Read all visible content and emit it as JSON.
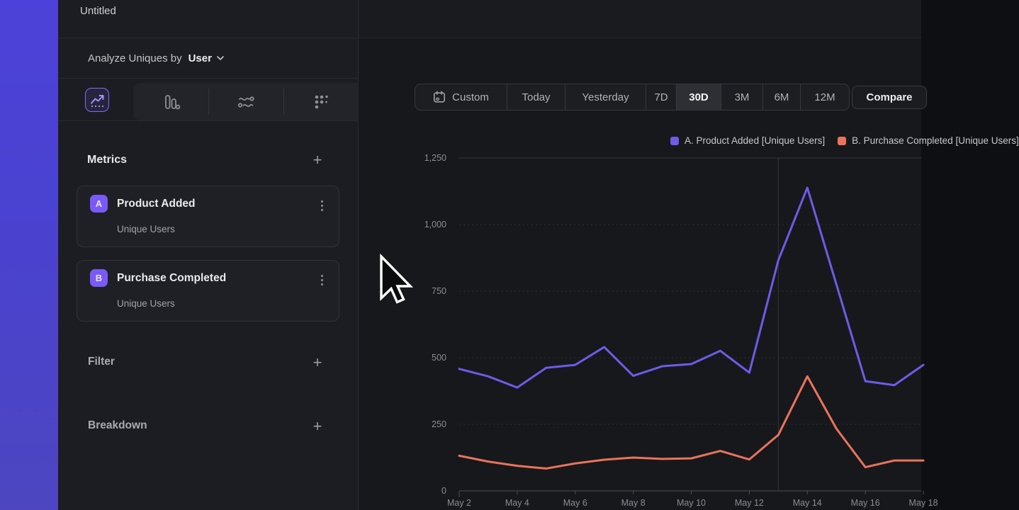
{
  "window": {
    "title": "Untitled"
  },
  "sidebar": {
    "analyze": {
      "prefix": "Analyze Uniques by",
      "value": "User"
    },
    "chart_type_tabs": [
      {
        "icon": "line-chart-icon",
        "active": true
      },
      {
        "icon": "bar-chart-icon",
        "active": false
      },
      {
        "icon": "flow-chart-icon",
        "active": false
      },
      {
        "icon": "scatter-chart-icon",
        "active": false
      }
    ],
    "metrics": {
      "title": "Metrics",
      "add_label": "+",
      "items": [
        {
          "badge": "A",
          "name": "Product Added",
          "measure": "Unique Users"
        },
        {
          "badge": "B",
          "name": "Purchase Completed",
          "measure": "Unique Users"
        }
      ]
    },
    "filter": {
      "label": "Filter",
      "add_label": "+"
    },
    "breakdown": {
      "label": "Breakdown",
      "add_label": "+"
    }
  },
  "toolbar": {
    "ranges": [
      {
        "label": "Custom",
        "icon": "calendar-icon",
        "active": false
      },
      {
        "label": "Today",
        "active": false
      },
      {
        "label": "Yesterday",
        "active": false
      },
      {
        "label": "7D",
        "active": false
      },
      {
        "label": "30D",
        "active": true
      },
      {
        "label": "3M",
        "active": false
      },
      {
        "label": "6M",
        "active": false
      },
      {
        "label": "12M",
        "active": false
      }
    ],
    "compare_label": "Compare"
  },
  "chart_data": {
    "type": "line",
    "x_unit": "date (May)",
    "x": [
      2,
      3,
      4,
      5,
      6,
      7,
      8,
      9,
      10,
      11,
      12,
      13,
      14,
      15,
      16,
      17,
      18
    ],
    "x_tick_days": [
      2,
      4,
      6,
      8,
      10,
      12,
      14,
      16,
      18
    ],
    "x_tick_labels": [
      "May 2",
      "May 4",
      "May 6",
      "May 8",
      "May 10",
      "May 12",
      "May 14",
      "May 16",
      "May 18"
    ],
    "series": [
      {
        "name": "A. Product Added [Unique Users]",
        "color": "#6e5be8",
        "values": [
          458,
          430,
          388,
          462,
          473,
          540,
          432,
          468,
          476,
          526,
          444,
          866,
          1138,
          776,
          412,
          397,
          473
        ]
      },
      {
        "name": "B. Purchase Completed [Unique Users]",
        "color": "#e9745b",
        "values": [
          132,
          110,
          94,
          84,
          103,
          117,
          125,
          120,
          122,
          150,
          118,
          210,
          430,
          234,
          89,
          114,
          114
        ]
      }
    ],
    "ylim": [
      0,
      1250
    ],
    "y_ticks": [
      0,
      250,
      500,
      750,
      1000,
      1250
    ],
    "y_tick_labels": [
      "0",
      "250",
      "500",
      "750",
      "1,000",
      "1,250"
    ],
    "grid": "horizontal, dashed; top line solid",
    "vertical_marker_day": 13,
    "legend_position": "top-right"
  },
  "colors": {
    "accent_purple": "#7a5af6",
    "series_purple": "#6e5be8",
    "series_orange": "#e9745b",
    "sidebar_bg": "#1c1d22",
    "main_bg": "#17181c",
    "rail_gradient_top": "#4c42d9",
    "rail_gradient_bottom": "#4d46c0"
  }
}
